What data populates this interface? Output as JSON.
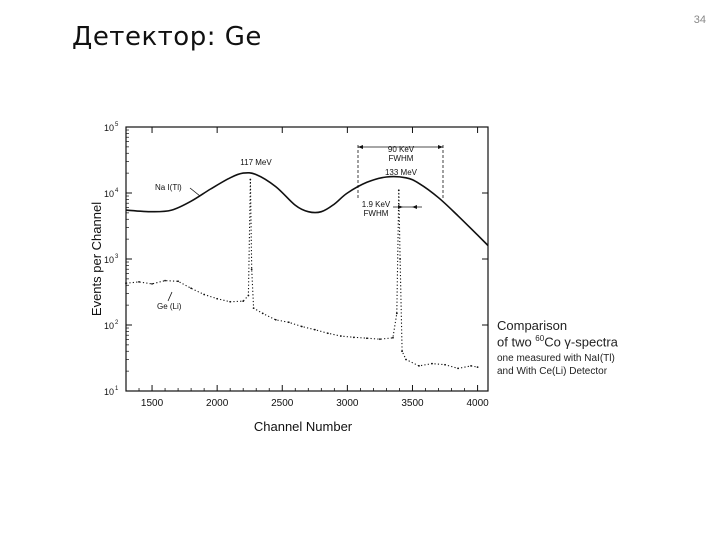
{
  "slide": {
    "title": "Детектор:  Ge",
    "page_number": "34"
  },
  "chart_data": {
    "type": "line",
    "ylabel": "Events per Channel",
    "xlabel": "Channel Number",
    "x_ticks": [
      1500,
      2000,
      2500,
      3000,
      3500,
      4000
    ],
    "y_ticks": [
      {
        "base": "10",
        "exp": "1"
      },
      {
        "base": "10",
        "exp": "2"
      },
      {
        "base": "10",
        "exp": "3"
      },
      {
        "base": "10",
        "exp": "4"
      },
      {
        "base": "10",
        "exp": "5"
      }
    ],
    "y_scale": "log",
    "xlim": [
      1300,
      4080
    ],
    "ylim": [
      10,
      100000
    ],
    "series": [
      {
        "name": "Na I(Tl)",
        "style": "solid",
        "x": [
          1300,
          1500,
          1650,
          1800,
          1950,
          2100,
          2200,
          2300,
          2450,
          2600,
          2700,
          2800,
          2900,
          3000,
          3150,
          3300,
          3450,
          3550,
          3700,
          3850,
          4000,
          4080
        ],
        "y": [
          5500,
          5200,
          5500,
          7500,
          11500,
          17000,
          20000,
          19000,
          12500,
          6500,
          5200,
          5200,
          6800,
          10000,
          14500,
          17500,
          17000,
          14000,
          8500,
          4500,
          2300,
          1600
        ]
      },
      {
        "name": "Ge (Li)",
        "style": "dotted",
        "x": [
          1300,
          1400,
          1500,
          1600,
          1700,
          1800,
          1900,
          2000,
          2100,
          2200,
          2240,
          2255,
          2265,
          2280,
          2350,
          2450,
          2550,
          2650,
          2750,
          2850,
          2950,
          3050,
          3150,
          3250,
          3350,
          3380,
          3395,
          3405,
          3420,
          3450,
          3550,
          3650,
          3750,
          3850,
          3950,
          4000
        ],
        "y": [
          430,
          450,
          420,
          470,
          460,
          360,
          290,
          250,
          225,
          230,
          280,
          16000,
          700,
          180,
          150,
          120,
          110,
          95,
          85,
          75,
          68,
          65,
          63,
          61,
          64,
          150,
          11000,
          1000,
          40,
          30,
          24,
          26,
          25,
          22,
          24,
          23
        ]
      }
    ],
    "annotations": {
      "peak1": "117 MeV",
      "peak2": "133 MeV",
      "fwhm_nai": "90 KeV",
      "fwhm_nai_label": "FWHM",
      "fwhm_ge": "1.9  KeV",
      "fwhm_ge_label": "FWHM",
      "nai_label": "Na I(Tl)",
      "ge_label": "Ge (Li)"
    },
    "side_note": {
      "line1": "Comparison",
      "line2_prefix": "of two ",
      "line2_sup": "60",
      "line2_suffix": "Co γ-spectra",
      "line3": "one measured with NaI(Tl)",
      "line4": "and With Ce(Li) Detector"
    },
    "grid": false,
    "colors": {
      "ink": "#111111",
      "background": "#ffffff"
    }
  }
}
